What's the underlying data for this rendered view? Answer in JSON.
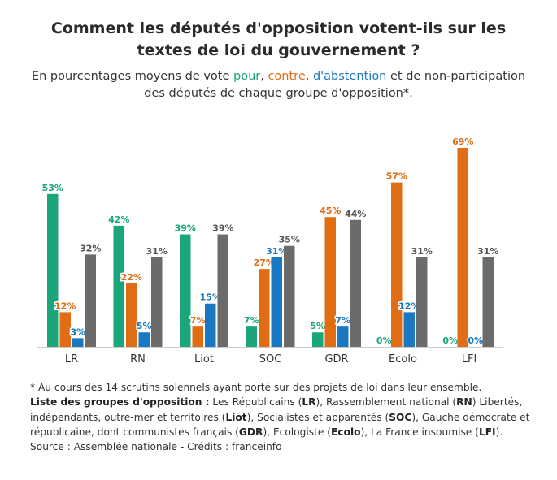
{
  "title": "Comment les députés d'opposition votent-ils sur les textes de loi du gouvernement ?",
  "subtitle": {
    "p1": "En pourcentages moyens de vote ",
    "pour": "pour",
    "sep1": ", ",
    "contre": "contre",
    "sep2": ", ",
    "abstention": "d'abstention",
    "p2": " et de non-participation des députés de chaque groupe d'opposition*."
  },
  "colors": {
    "pour": "#1aa67a",
    "contre": "#e06c14",
    "abstention": "#1a78c2",
    "non_participation": "#6b6b6b"
  },
  "chart_data": {
    "type": "bar",
    "categories": [
      "LR",
      "RN",
      "Liot",
      "SOC",
      "GDR",
      "Ecolo",
      "LFI"
    ],
    "series": [
      {
        "key": "pour",
        "values": [
          53,
          42,
          39,
          7,
          5,
          0,
          0
        ]
      },
      {
        "key": "contre",
        "values": [
          12,
          22,
          7,
          27,
          45,
          57,
          69
        ]
      },
      {
        "key": "abstention",
        "values": [
          3,
          5,
          15,
          31,
          7,
          12,
          0
        ]
      },
      {
        "key": "non_participation",
        "values": [
          32,
          31,
          39,
          35,
          44,
          31,
          31
        ]
      }
    ],
    "value_suffix": "%",
    "ylim": [
      0,
      69
    ],
    "grid": false
  },
  "notes": {
    "footnote": "* Au cours des 14 scrutins solennels ayant porté sur des projets de loi dans leur ensemble.",
    "list_label": "Liste des groupes d'opposition :",
    "s1": " Les Républicains (",
    "b1": "LR",
    "s2": "), Rassemblement national (",
    "b2": "RN",
    "s3": ") Libertés, indépendants, outre-mer et territoires (",
    "b3": "Liot",
    "s4": "), Socialistes et apparentés (",
    "b4": "SOC",
    "s5": "), Gauche démocrate et républicaine, dont communistes français (",
    "b5": "GDR",
    "s6": "), Ecologiste (",
    "b6": "Ecolo",
    "s7": "), La France insoumise (",
    "b7": "LFI",
    "s8": ").",
    "source": "Source : Assemblée nationale - Crédits : franceinfo"
  }
}
